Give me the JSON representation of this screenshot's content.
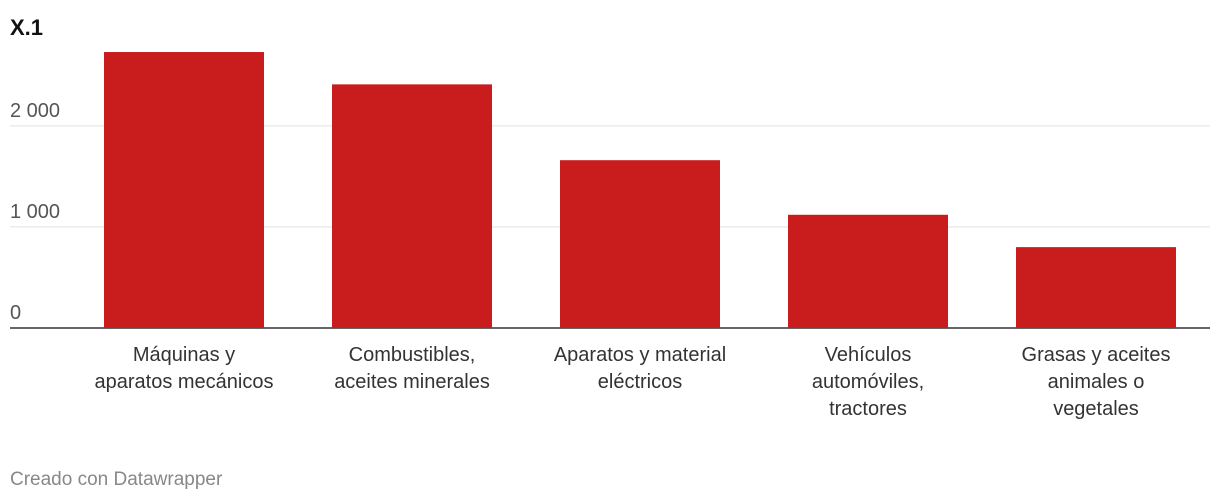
{
  "chart_data": {
    "type": "bar",
    "title": "X.1",
    "categories": [
      [
        "Máquinas y",
        "aparatos mecánicos"
      ],
      [
        "Combustibles,",
        "aceites minerales"
      ],
      [
        "Aparatos y material",
        "eléctricos"
      ],
      [
        "Vehículos",
        "automóviles,",
        "tractores"
      ],
      [
        "Grasas y aceites",
        "animales o",
        "vegetales"
      ]
    ],
    "values": [
      2730,
      2410,
      1660,
      1120,
      800
    ],
    "ylim": [
      0,
      2750
    ],
    "yticks": [
      0,
      1000,
      2000
    ],
    "ytick_labels": [
      "0",
      "1 000",
      "2 000"
    ],
    "bar_color": "#c91d1d",
    "xlabel": "",
    "ylabel": ""
  },
  "footer": {
    "credit": "Creado con Datawrapper"
  }
}
